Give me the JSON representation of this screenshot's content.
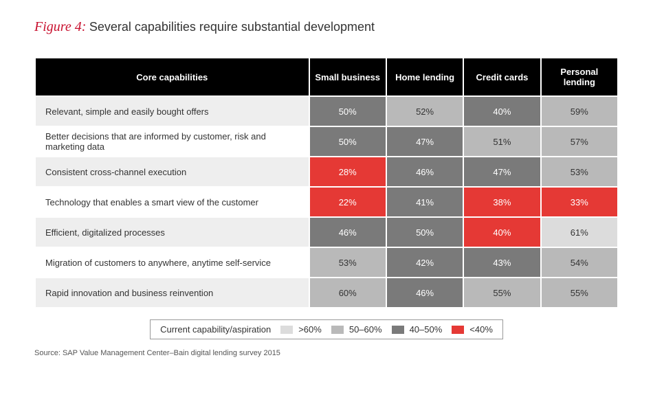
{
  "figure_label": "Figure 4:",
  "figure_title": "Several capabilities require substantial development",
  "columns_header_first": "Core capabilities",
  "columns": [
    "Small business",
    "Home lending",
    "Credit cards",
    "Personal lending"
  ],
  "rows": [
    {
      "label": "Relevant, simple and easily bought offers",
      "values": [
        "50%",
        "52%",
        "40%",
        "59%"
      ],
      "classes": [
        "c-40-50",
        "c-50-60",
        "c-40-50",
        "c-50-60"
      ]
    },
    {
      "label": "Better decisions that are informed by customer, risk and marketing data",
      "values": [
        "50%",
        "47%",
        "51%",
        "57%"
      ],
      "classes": [
        "c-40-50",
        "c-40-50",
        "c-50-60",
        "c-50-60"
      ]
    },
    {
      "label": "Consistent cross-channel execution",
      "values": [
        "28%",
        "46%",
        "47%",
        "53%"
      ],
      "classes": [
        "c-under40",
        "c-40-50",
        "c-40-50",
        "c-50-60"
      ]
    },
    {
      "label": "Technology that enables a smart view of the customer",
      "values": [
        "22%",
        "41%",
        "38%",
        "33%"
      ],
      "classes": [
        "c-under40",
        "c-40-50",
        "c-under40",
        "c-under40"
      ]
    },
    {
      "label": "Efficient, digitalized processes",
      "values": [
        "46%",
        "50%",
        "40%",
        "61%"
      ],
      "classes": [
        "c-40-50",
        "c-40-50",
        "c-under40",
        "c-over60"
      ]
    },
    {
      "label": "Migration of customers to anywhere, anytime self-service",
      "values": [
        "53%",
        "42%",
        "43%",
        "54%"
      ],
      "classes": [
        "c-50-60",
        "c-40-50",
        "c-40-50",
        "c-50-60"
      ]
    },
    {
      "label": "Rapid innovation and business reinvention",
      "values": [
        "60%",
        "46%",
        "55%",
        "55%"
      ],
      "classes": [
        "c-50-60",
        "c-40-50",
        "c-50-60",
        "c-50-60"
      ]
    }
  ],
  "legend_label": "Current capability/aspiration",
  "legend_items": [
    {
      "text": ">60%",
      "swatch_class": "c-over60"
    },
    {
      "text": "50–60%",
      "swatch_class": "c-50-60"
    },
    {
      "text": "40–50%",
      "swatch_class": "c-40-50"
    },
    {
      "text": "<40%",
      "swatch_class": "c-under40"
    }
  ],
  "source": "Source: SAP Value Management Center–Bain digital lending survey 2015",
  "colors": {
    "accent_red": "#c8102e",
    "cell_red": "#e53935",
    "cell_dark_gray": "#7a7a7a",
    "cell_mid_gray": "#b9b9b9",
    "cell_light_gray": "#dcdcdc",
    "header_black": "#000000",
    "row_stripe": "#eeeeee",
    "background": "#ffffff"
  }
}
